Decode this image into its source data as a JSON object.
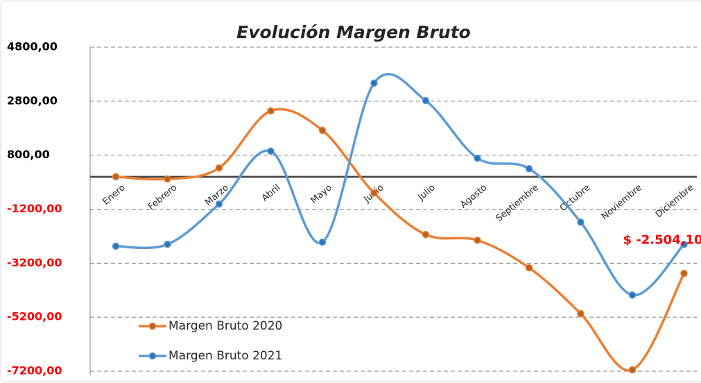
{
  "chart_data": {
    "type": "line",
    "title": "Evolución Margen Bruto",
    "categories": [
      "Enero",
      "Febrero",
      "Marzo",
      "Abril",
      "Mayo",
      "Junio",
      "Julio",
      "Agosto",
      "Septiembre",
      "Octubre",
      "Noviembre",
      "Diciembre"
    ],
    "series": [
      {
        "name": "Margen Bruto 2020",
        "color": "#ed7d31",
        "marker_color": "#b8641f",
        "values": [
          0,
          -80,
          330,
          2440,
          1720,
          -600,
          -2140,
          -2350,
          -3370,
          -5070,
          -7150,
          -3580
        ]
      },
      {
        "name": "Margen Bruto 2021",
        "color": "#5b9bd5",
        "marker_color": "#2e75b6",
        "values": [
          -2570,
          -2500,
          -1010,
          950,
          -2420,
          3470,
          2820,
          690,
          300,
          -1680,
          -4380,
          -2504.1
        ],
        "value_labels": [
          null,
          null,
          null,
          null,
          null,
          null,
          null,
          null,
          null,
          null,
          null,
          "$ -2.504,10"
        ]
      }
    ],
    "ylim": [
      -7200,
      4800
    ],
    "yticks": [
      {
        "value": 4800,
        "label": "4800,00"
      },
      {
        "value": 2800,
        "label": "2800,00"
      },
      {
        "value": 800,
        "label": "800,00"
      },
      {
        "value": -1200,
        "label": "-1200,00"
      },
      {
        "value": -3200,
        "label": "-3200,00"
      },
      {
        "value": -5200,
        "label": "-5200,00"
      },
      {
        "value": -7200,
        "label": "-7200,00"
      }
    ],
    "grid": true,
    "smooth": true,
    "legend": "lower left",
    "positive_tick_color": "#000000",
    "negative_tick_color": "#ff0000",
    "value_label_color": "#ff0000"
  }
}
